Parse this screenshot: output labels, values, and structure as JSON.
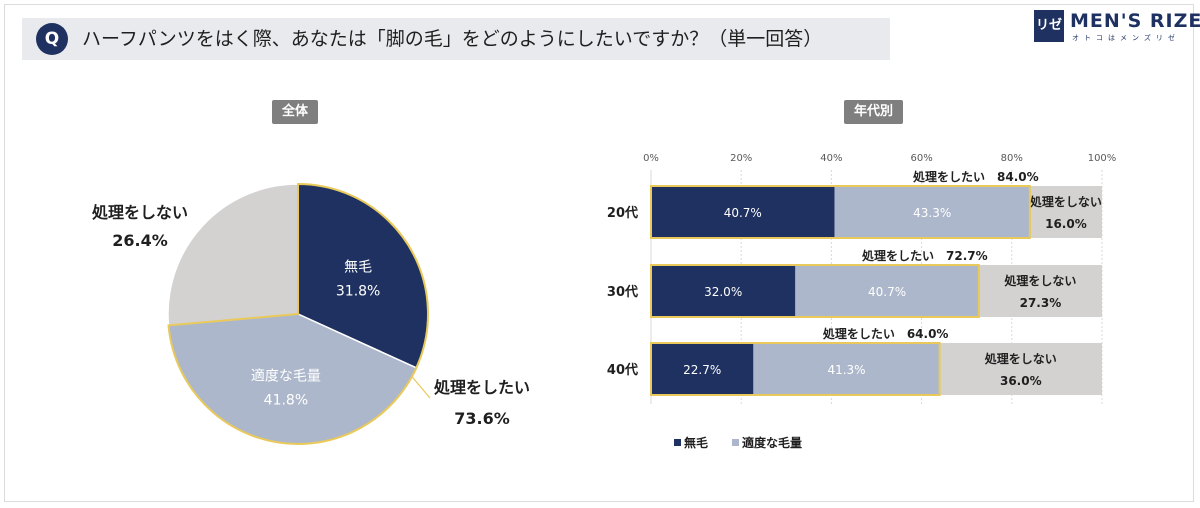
{
  "question": {
    "badge": "Q",
    "text": "ハーフパンツをはく際、あなたは「脚の毛」をどのようにしたいですか？（単一回答）"
  },
  "logo": {
    "badge": "リゼ",
    "main": "MEN'S RIZE",
    "sub": "オトコはメンズリゼ"
  },
  "colors": {
    "navy": "#1e3160",
    "gray_blue": "#adb7cb",
    "light_gray": "#d4d1d1",
    "gold": "#e8c95a"
  },
  "chart_data": [
    {
      "type": "pie",
      "title": "全体",
      "slices": [
        {
          "label": "無毛",
          "value": 31.8,
          "display": "31.8%",
          "color": "#1e3160"
        },
        {
          "label": "適度な毛量",
          "value": 41.8,
          "display": "41.8%",
          "color": "#adb7cb"
        },
        {
          "label": "処理をしない",
          "value": 26.4,
          "display": "26.4%",
          "color": "#d4d1d1"
        }
      ],
      "group_annotation": {
        "label": "処理をしたい",
        "value": 73.6,
        "display": "73.6%"
      }
    },
    {
      "type": "bar",
      "orientation": "horizontal",
      "stacked": true,
      "title": "年代別",
      "categories": [
        "20代",
        "30代",
        "40代"
      ],
      "xlim": [
        0,
        100
      ],
      "xticks": [
        "0%",
        "20%",
        "40%",
        "60%",
        "80%",
        "100%"
      ],
      "series": [
        {
          "name": "無毛",
          "values": [
            40.7,
            32.0,
            22.7
          ],
          "labels": [
            "40.7%",
            "32.0%",
            "22.7%"
          ],
          "color": "#1e3160"
        },
        {
          "name": "適度な毛量",
          "values": [
            43.3,
            40.7,
            41.3
          ],
          "labels": [
            "43.3%",
            "40.7%",
            "41.3%"
          ],
          "color": "#adb7cb"
        },
        {
          "name": "処理をしない",
          "values": [
            16.0,
            27.3,
            36.0
          ],
          "labels": [
            "16.0%",
            "27.3%",
            "36.0%"
          ],
          "color": "#d4d1d1"
        }
      ],
      "group_annotations": [
        "処理をしたい　84.0%",
        "処理をしたい　72.7%",
        "処理をしたい　64.0%"
      ],
      "remainder_label": "処理をしない",
      "legend_position": "bottom-left",
      "legend": [
        "無毛",
        "適度な毛量"
      ]
    }
  ]
}
